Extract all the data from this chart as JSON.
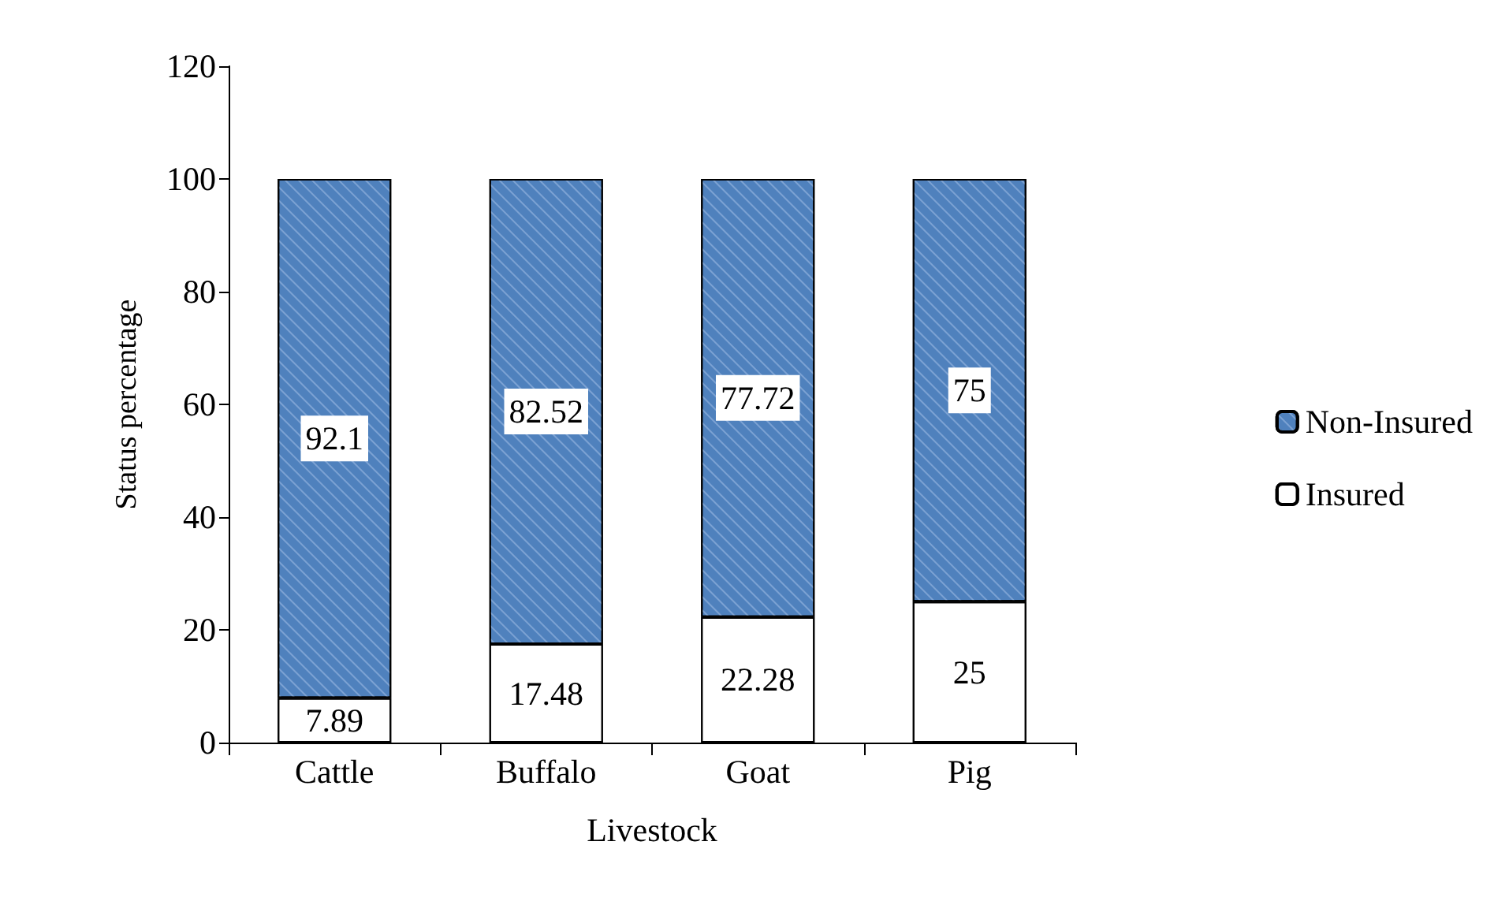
{
  "chart_data": {
    "type": "bar",
    "stacked": true,
    "xlabel": "Livestock",
    "ylabel": "Status percentage",
    "categories": [
      "Cattle",
      "Buffalo",
      "Goat",
      "Pig"
    ],
    "series": [
      {
        "name": "Insured",
        "color": "#ffffff",
        "values": [
          7.89,
          17.48,
          22.28,
          25
        ]
      },
      {
        "name": "Non-Insured",
        "color": "#4f81bd",
        "values": [
          92.1,
          82.52,
          77.72,
          75
        ]
      }
    ],
    "ylim": [
      0,
      120
    ],
    "yticks": [
      0,
      20,
      40,
      60,
      80,
      100,
      120
    ],
    "grid": false,
    "legend": "right",
    "data_labels": true
  }
}
